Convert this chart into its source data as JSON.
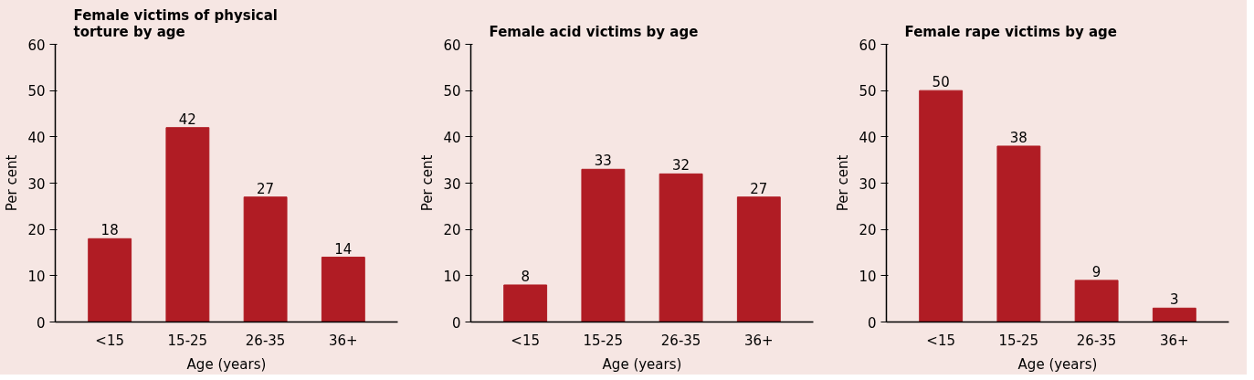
{
  "chart_data": [
    {
      "type": "bar",
      "title": "Female victims of physical torture by age",
      "xlabel": "Age (years)",
      "ylabel": "Per cent",
      "categories": [
        "<15",
        "15-25",
        "26-35",
        "36+"
      ],
      "values": [
        18,
        42,
        27,
        14
      ],
      "color": "#b01c24",
      "ylim": [
        0,
        60
      ],
      "yticks": [
        0,
        10,
        20,
        30,
        40,
        50,
        60
      ],
      "data_labels": true,
      "grid": false
    },
    {
      "type": "bar",
      "title": "Female acid victims by age",
      "xlabel": "Age (years)",
      "ylabel": "Per cent",
      "categories": [
        "<15",
        "15-25",
        "26-35",
        "36+"
      ],
      "values": [
        8,
        33,
        32,
        27
      ],
      "color": "#b01c24",
      "ylim": [
        0,
        60
      ],
      "yticks": [
        0,
        10,
        20,
        30,
        40,
        50,
        60
      ],
      "data_labels": true,
      "grid": false
    },
    {
      "type": "bar",
      "title": "Female rape victims by age",
      "xlabel": "Age (years)",
      "ylabel": "Per cent",
      "categories": [
        "<15",
        "15-25",
        "26-35",
        "36+"
      ],
      "values": [
        50,
        38,
        9,
        3
      ],
      "color": "#b01c24",
      "ylim": [
        0,
        60
      ],
      "yticks": [
        0,
        10,
        20,
        30,
        40,
        50,
        60
      ],
      "data_labels": true,
      "grid": false
    }
  ]
}
